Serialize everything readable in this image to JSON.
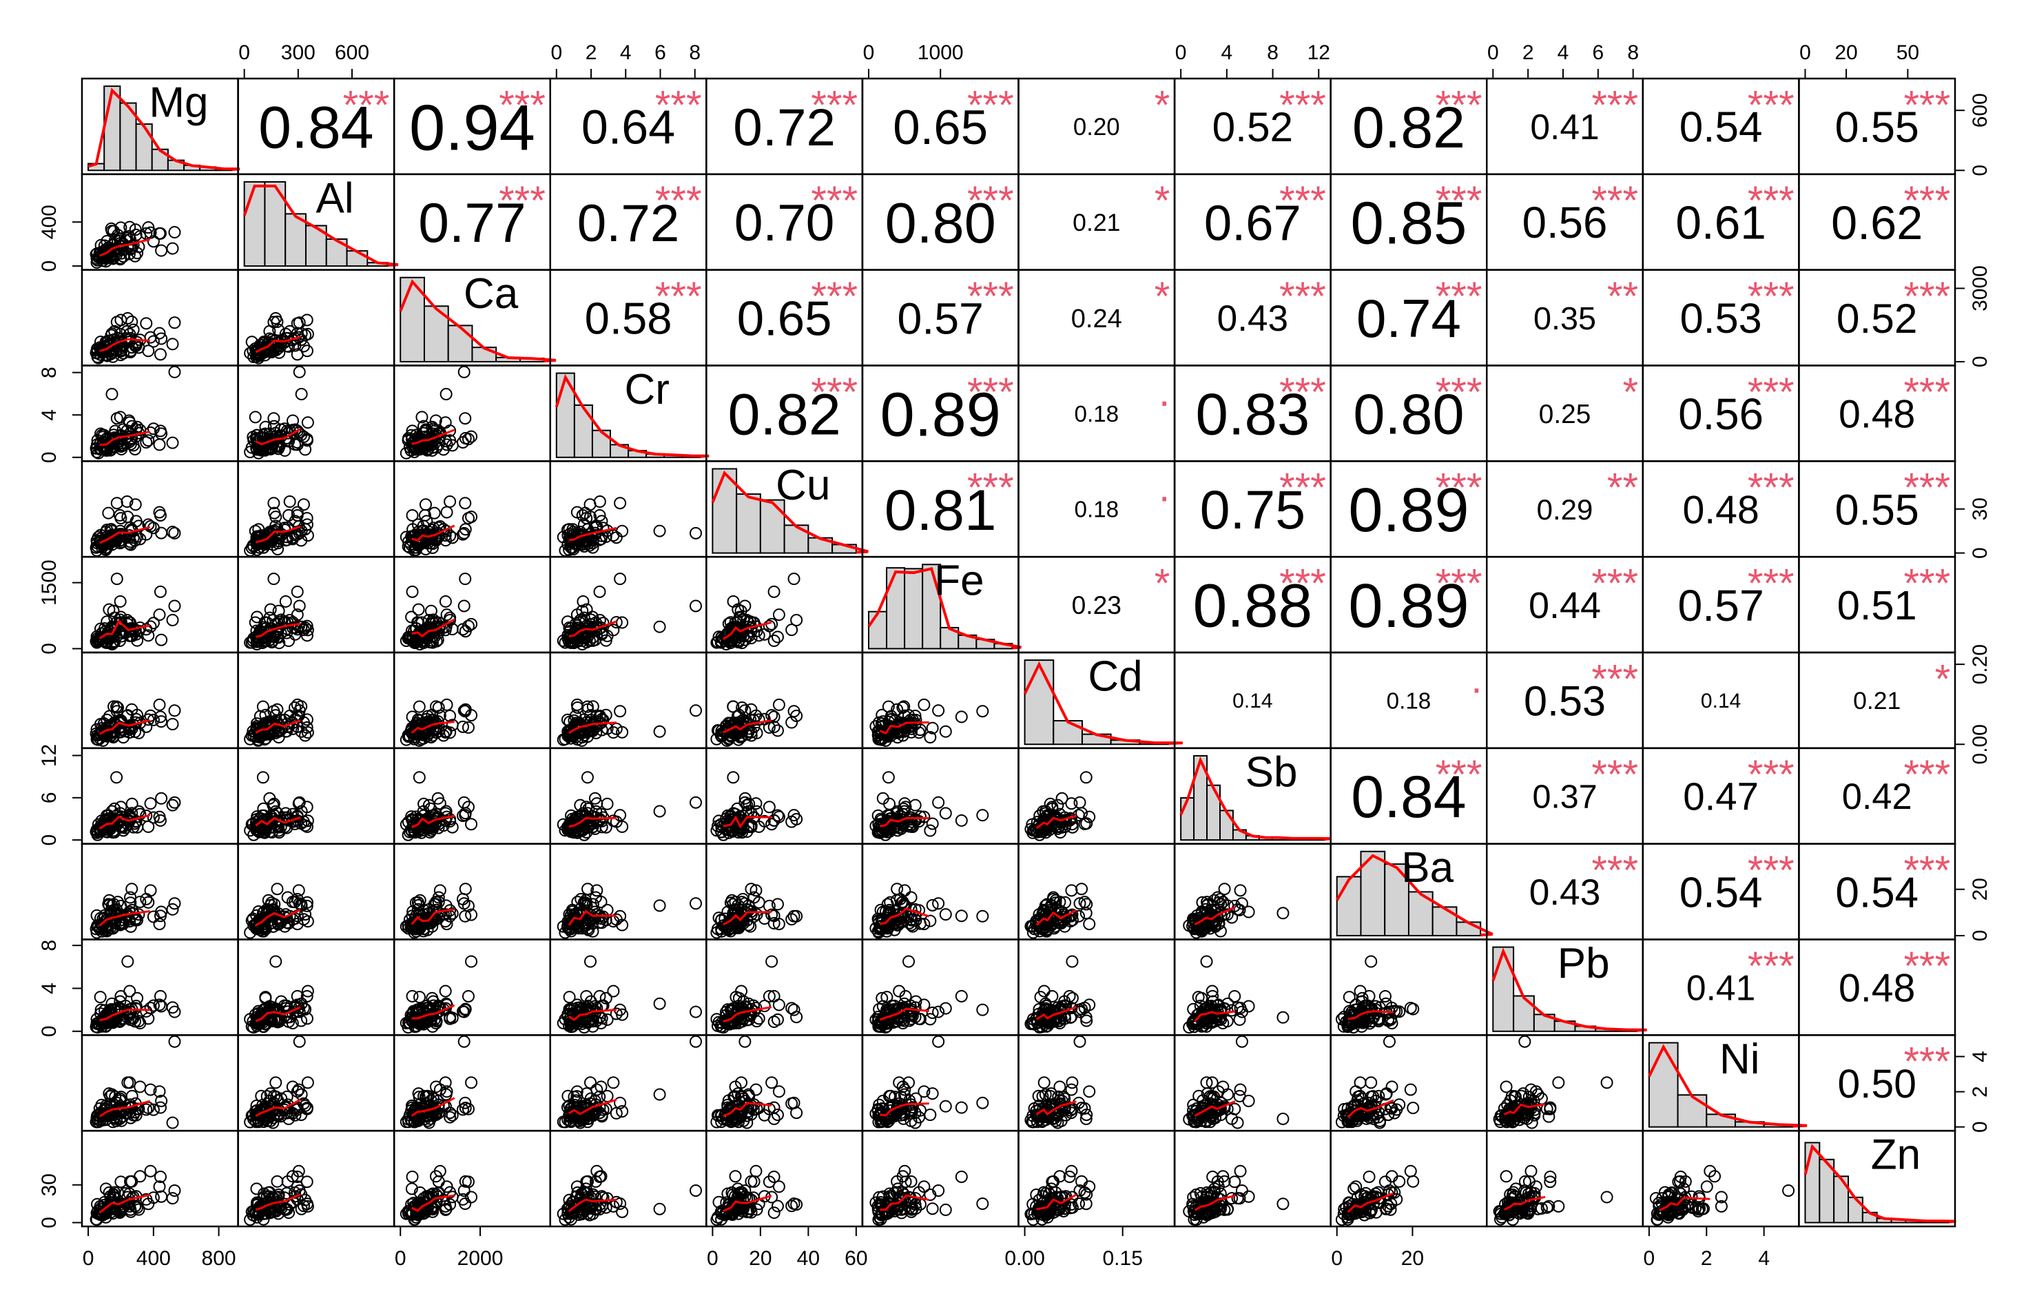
{
  "chart_data": {
    "type": "scatter",
    "title": "",
    "variables": [
      "Mg",
      "Al",
      "Ca",
      "Cr",
      "Cu",
      "Fe",
      "Cd",
      "Sb",
      "Ba",
      "Pb",
      "Ni",
      "Zn"
    ],
    "ranges": {
      "Mg": [
        0,
        880
      ],
      "Al": [
        0,
        800
      ],
      "Ca": [
        0,
        3600
      ],
      "Cr": [
        0,
        8.3
      ],
      "Cu": [
        0,
        60
      ],
      "Fe": [
        0,
        2000
      ],
      "Cd": [
        0,
        0.22
      ],
      "Sb": [
        0,
        12.5
      ],
      "Ba": [
        0,
        38
      ],
      "Pb": [
        0,
        8.2
      ],
      "Ni": [
        0,
        5
      ],
      "Zn": [
        0,
        70
      ]
    },
    "ticks": {
      "Mg": [
        0,
        400,
        800
      ],
      "Al": [
        0,
        300,
        600
      ],
      "Ca": [
        0,
        2000
      ],
      "Cr": [
        0,
        2,
        4,
        6,
        8
      ],
      "Cu": [
        0,
        20,
        40,
        60
      ],
      "Fe": [
        0,
        1000
      ],
      "Cd": [
        0.0,
        0.15
      ],
      "Sb": [
        0,
        4,
        8,
        12
      ],
      "Ba": [
        0,
        20
      ],
      "Pb": [
        0,
        2,
        4,
        6,
        8
      ],
      "Ni": [
        0,
        2,
        4
      ],
      "Zn": [
        0,
        20,
        50
      ]
    },
    "left_axis_ticks": {
      "Al": [
        "0",
        "400"
      ],
      "Cr": [
        "0",
        "4",
        "8"
      ],
      "Fe": [
        "0",
        "1500"
      ],
      "Sb": [
        "0",
        "6",
        "12"
      ],
      "Pb": [
        "0",
        "4",
        "8"
      ],
      "Zn": [
        "0",
        "30"
      ]
    },
    "right_axis_ticks": {
      "Mg": [
        "0",
        "600"
      ],
      "Ca": [
        "0",
        "3000"
      ],
      "Cu": [
        "0",
        "30"
      ],
      "Cd": [
        "0.00",
        "0.20"
      ],
      "Ba": [
        "0",
        "20"
      ],
      "Ni": [
        "0",
        "2",
        "4"
      ]
    },
    "top_axis_ticks": {
      "Al": [
        "0",
        "300",
        "600"
      ],
      "Cr": [
        "0",
        "2",
        "4",
        "6",
        "8"
      ],
      "Fe": [
        "0",
        "1000"
      ],
      "Sb": [
        "0",
        "4",
        "8",
        "12"
      ],
      "Pb": [
        "0",
        "2",
        "4",
        "6",
        "8"
      ],
      "Zn": [
        "0",
        "20",
        "50"
      ]
    },
    "bottom_axis_ticks": {
      "Mg": [
        "0",
        "400",
        "800"
      ],
      "Ca": [
        "0",
        "2000"
      ],
      "Cu": [
        "0",
        "20",
        "40",
        "60"
      ],
      "Cd": [
        "0.00",
        "0.15"
      ],
      "Ba": [
        "0",
        "20"
      ],
      "Ni": [
        "0",
        "2",
        "4"
      ]
    },
    "correlations": [
      {
        "a": "Mg",
        "b": "Al",
        "r": "0.84",
        "sig": "***"
      },
      {
        "a": "Mg",
        "b": "Ca",
        "r": "0.94",
        "sig": "***"
      },
      {
        "a": "Mg",
        "b": "Cr",
        "r": "0.64",
        "sig": "***"
      },
      {
        "a": "Mg",
        "b": "Cu",
        "r": "0.72",
        "sig": "***"
      },
      {
        "a": "Mg",
        "b": "Fe",
        "r": "0.65",
        "sig": "***"
      },
      {
        "a": "Mg",
        "b": "Cd",
        "r": "0.20",
        "sig": "*"
      },
      {
        "a": "Mg",
        "b": "Sb",
        "r": "0.52",
        "sig": "***"
      },
      {
        "a": "Mg",
        "b": "Ba",
        "r": "0.82",
        "sig": "***"
      },
      {
        "a": "Mg",
        "b": "Pb",
        "r": "0.41",
        "sig": "***"
      },
      {
        "a": "Mg",
        "b": "Ni",
        "r": "0.54",
        "sig": "***"
      },
      {
        "a": "Mg",
        "b": "Zn",
        "r": "0.55",
        "sig": "***"
      },
      {
        "a": "Al",
        "b": "Ca",
        "r": "0.77",
        "sig": "***"
      },
      {
        "a": "Al",
        "b": "Cr",
        "r": "0.72",
        "sig": "***"
      },
      {
        "a": "Al",
        "b": "Cu",
        "r": "0.70",
        "sig": "***"
      },
      {
        "a": "Al",
        "b": "Fe",
        "r": "0.80",
        "sig": "***"
      },
      {
        "a": "Al",
        "b": "Cd",
        "r": "0.21",
        "sig": "*"
      },
      {
        "a": "Al",
        "b": "Sb",
        "r": "0.67",
        "sig": "***"
      },
      {
        "a": "Al",
        "b": "Ba",
        "r": "0.85",
        "sig": "***"
      },
      {
        "a": "Al",
        "b": "Pb",
        "r": "0.56",
        "sig": "***"
      },
      {
        "a": "Al",
        "b": "Ni",
        "r": "0.61",
        "sig": "***"
      },
      {
        "a": "Al",
        "b": "Zn",
        "r": "0.62",
        "sig": "***"
      },
      {
        "a": "Ca",
        "b": "Cr",
        "r": "0.58",
        "sig": "***"
      },
      {
        "a": "Ca",
        "b": "Cu",
        "r": "0.65",
        "sig": "***"
      },
      {
        "a": "Ca",
        "b": "Fe",
        "r": "0.57",
        "sig": "***"
      },
      {
        "a": "Ca",
        "b": "Cd",
        "r": "0.24",
        "sig": "*"
      },
      {
        "a": "Ca",
        "b": "Sb",
        "r": "0.43",
        "sig": "***"
      },
      {
        "a": "Ca",
        "b": "Ba",
        "r": "0.74",
        "sig": "***"
      },
      {
        "a": "Ca",
        "b": "Pb",
        "r": "0.35",
        "sig": "**"
      },
      {
        "a": "Ca",
        "b": "Ni",
        "r": "0.53",
        "sig": "***"
      },
      {
        "a": "Ca",
        "b": "Zn",
        "r": "0.52",
        "sig": "***"
      },
      {
        "a": "Cr",
        "b": "Cu",
        "r": "0.82",
        "sig": "***"
      },
      {
        "a": "Cr",
        "b": "Fe",
        "r": "0.89",
        "sig": "***"
      },
      {
        "a": "Cr",
        "b": "Cd",
        "r": "0.18",
        "sig": "."
      },
      {
        "a": "Cr",
        "b": "Sb",
        "r": "0.83",
        "sig": "***"
      },
      {
        "a": "Cr",
        "b": "Ba",
        "r": "0.80",
        "sig": "***"
      },
      {
        "a": "Cr",
        "b": "Pb",
        "r": "0.25",
        "sig": "*"
      },
      {
        "a": "Cr",
        "b": "Ni",
        "r": "0.56",
        "sig": "***"
      },
      {
        "a": "Cr",
        "b": "Zn",
        "r": "0.48",
        "sig": "***"
      },
      {
        "a": "Cu",
        "b": "Fe",
        "r": "0.81",
        "sig": "***"
      },
      {
        "a": "Cu",
        "b": "Cd",
        "r": "0.18",
        "sig": "."
      },
      {
        "a": "Cu",
        "b": "Sb",
        "r": "0.75",
        "sig": "***"
      },
      {
        "a": "Cu",
        "b": "Ba",
        "r": "0.89",
        "sig": "***"
      },
      {
        "a": "Cu",
        "b": "Pb",
        "r": "0.29",
        "sig": "**"
      },
      {
        "a": "Cu",
        "b": "Ni",
        "r": "0.48",
        "sig": "***"
      },
      {
        "a": "Cu",
        "b": "Zn",
        "r": "0.55",
        "sig": "***"
      },
      {
        "a": "Fe",
        "b": "Cd",
        "r": "0.23",
        "sig": "*"
      },
      {
        "a": "Fe",
        "b": "Sb",
        "r": "0.88",
        "sig": "***"
      },
      {
        "a": "Fe",
        "b": "Ba",
        "r": "0.89",
        "sig": "***"
      },
      {
        "a": "Fe",
        "b": "Pb",
        "r": "0.44",
        "sig": "***"
      },
      {
        "a": "Fe",
        "b": "Ni",
        "r": "0.57",
        "sig": "***"
      },
      {
        "a": "Fe",
        "b": "Zn",
        "r": "0.51",
        "sig": "***"
      },
      {
        "a": "Cd",
        "b": "Sb",
        "r": "0.14",
        "sig": ""
      },
      {
        "a": "Cd",
        "b": "Ba",
        "r": "0.18",
        "sig": "."
      },
      {
        "a": "Cd",
        "b": "Pb",
        "r": "0.53",
        "sig": "***"
      },
      {
        "a": "Cd",
        "b": "Ni",
        "r": "0.14",
        "sig": ""
      },
      {
        "a": "Cd",
        "b": "Zn",
        "r": "0.21",
        "sig": "*"
      },
      {
        "a": "Sb",
        "b": "Ba",
        "r": "0.84",
        "sig": "***"
      },
      {
        "a": "Sb",
        "b": "Pb",
        "r": "0.37",
        "sig": "***"
      },
      {
        "a": "Sb",
        "b": "Ni",
        "r": "0.47",
        "sig": "***"
      },
      {
        "a": "Sb",
        "b": "Zn",
        "r": "0.42",
        "sig": "***"
      },
      {
        "a": "Ba",
        "b": "Pb",
        "r": "0.43",
        "sig": "***"
      },
      {
        "a": "Ba",
        "b": "Ni",
        "r": "0.54",
        "sig": "***"
      },
      {
        "a": "Ba",
        "b": "Zn",
        "r": "0.54",
        "sig": "***"
      },
      {
        "a": "Pb",
        "b": "Ni",
        "r": "0.41",
        "sig": "***"
      },
      {
        "a": "Pb",
        "b": "Zn",
        "r": "0.48",
        "sig": "***"
      },
      {
        "a": "Ni",
        "b": "Zn",
        "r": "0.50",
        "sig": "***"
      }
    ],
    "histograms": {
      "Mg": [
        0.08,
        1.0,
        0.8,
        0.55,
        0.25,
        0.12,
        0.06,
        0.04,
        0.02
      ],
      "Al": [
        1.0,
        1.0,
        0.62,
        0.48,
        0.32,
        0.18,
        0.04
      ],
      "Ca": [
        1.0,
        0.66,
        0.43,
        0.17,
        0.05,
        0.04
      ],
      "Cr": [
        1.0,
        0.62,
        0.32,
        0.15,
        0.08,
        0.04,
        0.03,
        0.02
      ],
      "Cu": [
        1.0,
        0.7,
        0.63,
        0.33,
        0.18,
        0.1
      ],
      "Fe": [
        0.44,
        0.96,
        0.95,
        1.0,
        0.25,
        0.16,
        0.11,
        0.06
      ],
      "Cd": [
        1.0,
        0.28,
        0.12,
        0.05,
        0.02
      ],
      "Sb": [
        0.5,
        1.0,
        0.65,
        0.35,
        0.12,
        0.05,
        0.03,
        0.03,
        0.02,
        0.02,
        0.02
      ],
      "Ba": [
        0.7,
        1.0,
        0.85,
        0.52,
        0.34,
        0.16
      ],
      "Pb": [
        1.0,
        0.42,
        0.2,
        0.12,
        0.06,
        0.03,
        0.02
      ],
      "Ni": [
        1.0,
        0.38,
        0.15,
        0.06,
        0.03
      ],
      "Zn": [
        0.95,
        0.75,
        0.55,
        0.3,
        0.12,
        0.05,
        0.04,
        0.03,
        0.02,
        0.02
      ]
    },
    "grid": false,
    "legend": "none"
  }
}
